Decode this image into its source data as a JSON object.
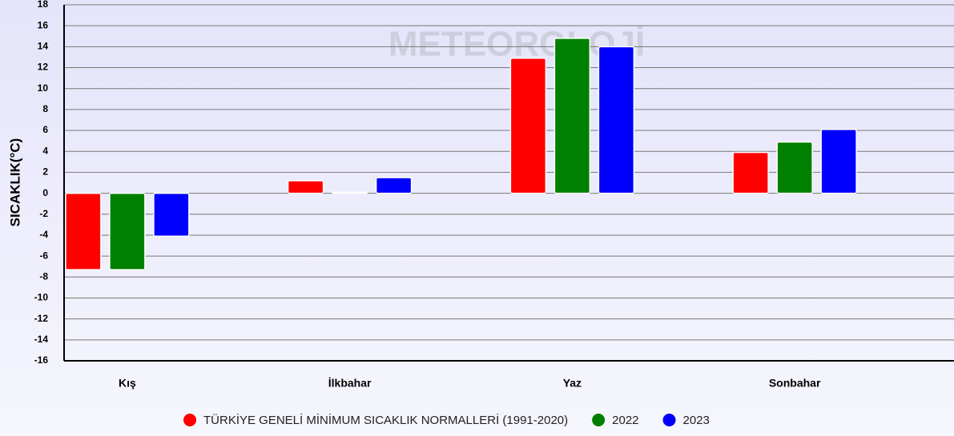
{
  "chart_data": {
    "type": "bar",
    "watermark": "METEOROLOJİ",
    "y_label": "SICAKLIK(°C)",
    "categories": [
      "Kış",
      "İlkbahar",
      "Yaz",
      "Sonbahar"
    ],
    "series": [
      {
        "name": "TÜRKİYE GENELİ MİNİMUM SICAKLIK NORMALLERİ (1991-2020)",
        "color": "#ff0000",
        "values": [
          -7.3,
          1.2,
          12.9,
          3.9
        ]
      },
      {
        "name": "2022",
        "color": "#008000",
        "values": [
          -7.3,
          0.1,
          14.8,
          4.9
        ]
      },
      {
        "name": "2023",
        "color": "#0000ff",
        "values": [
          -4.1,
          1.5,
          14.0,
          6.1
        ]
      }
    ],
    "ylim": [
      -16,
      18
    ],
    "yticks": [
      -16,
      -14,
      -12,
      -10,
      -8,
      -6,
      -4,
      -2,
      0,
      2,
      4,
      6,
      8,
      10,
      12,
      14,
      16,
      18
    ],
    "grid": true,
    "legend": "bottom"
  }
}
